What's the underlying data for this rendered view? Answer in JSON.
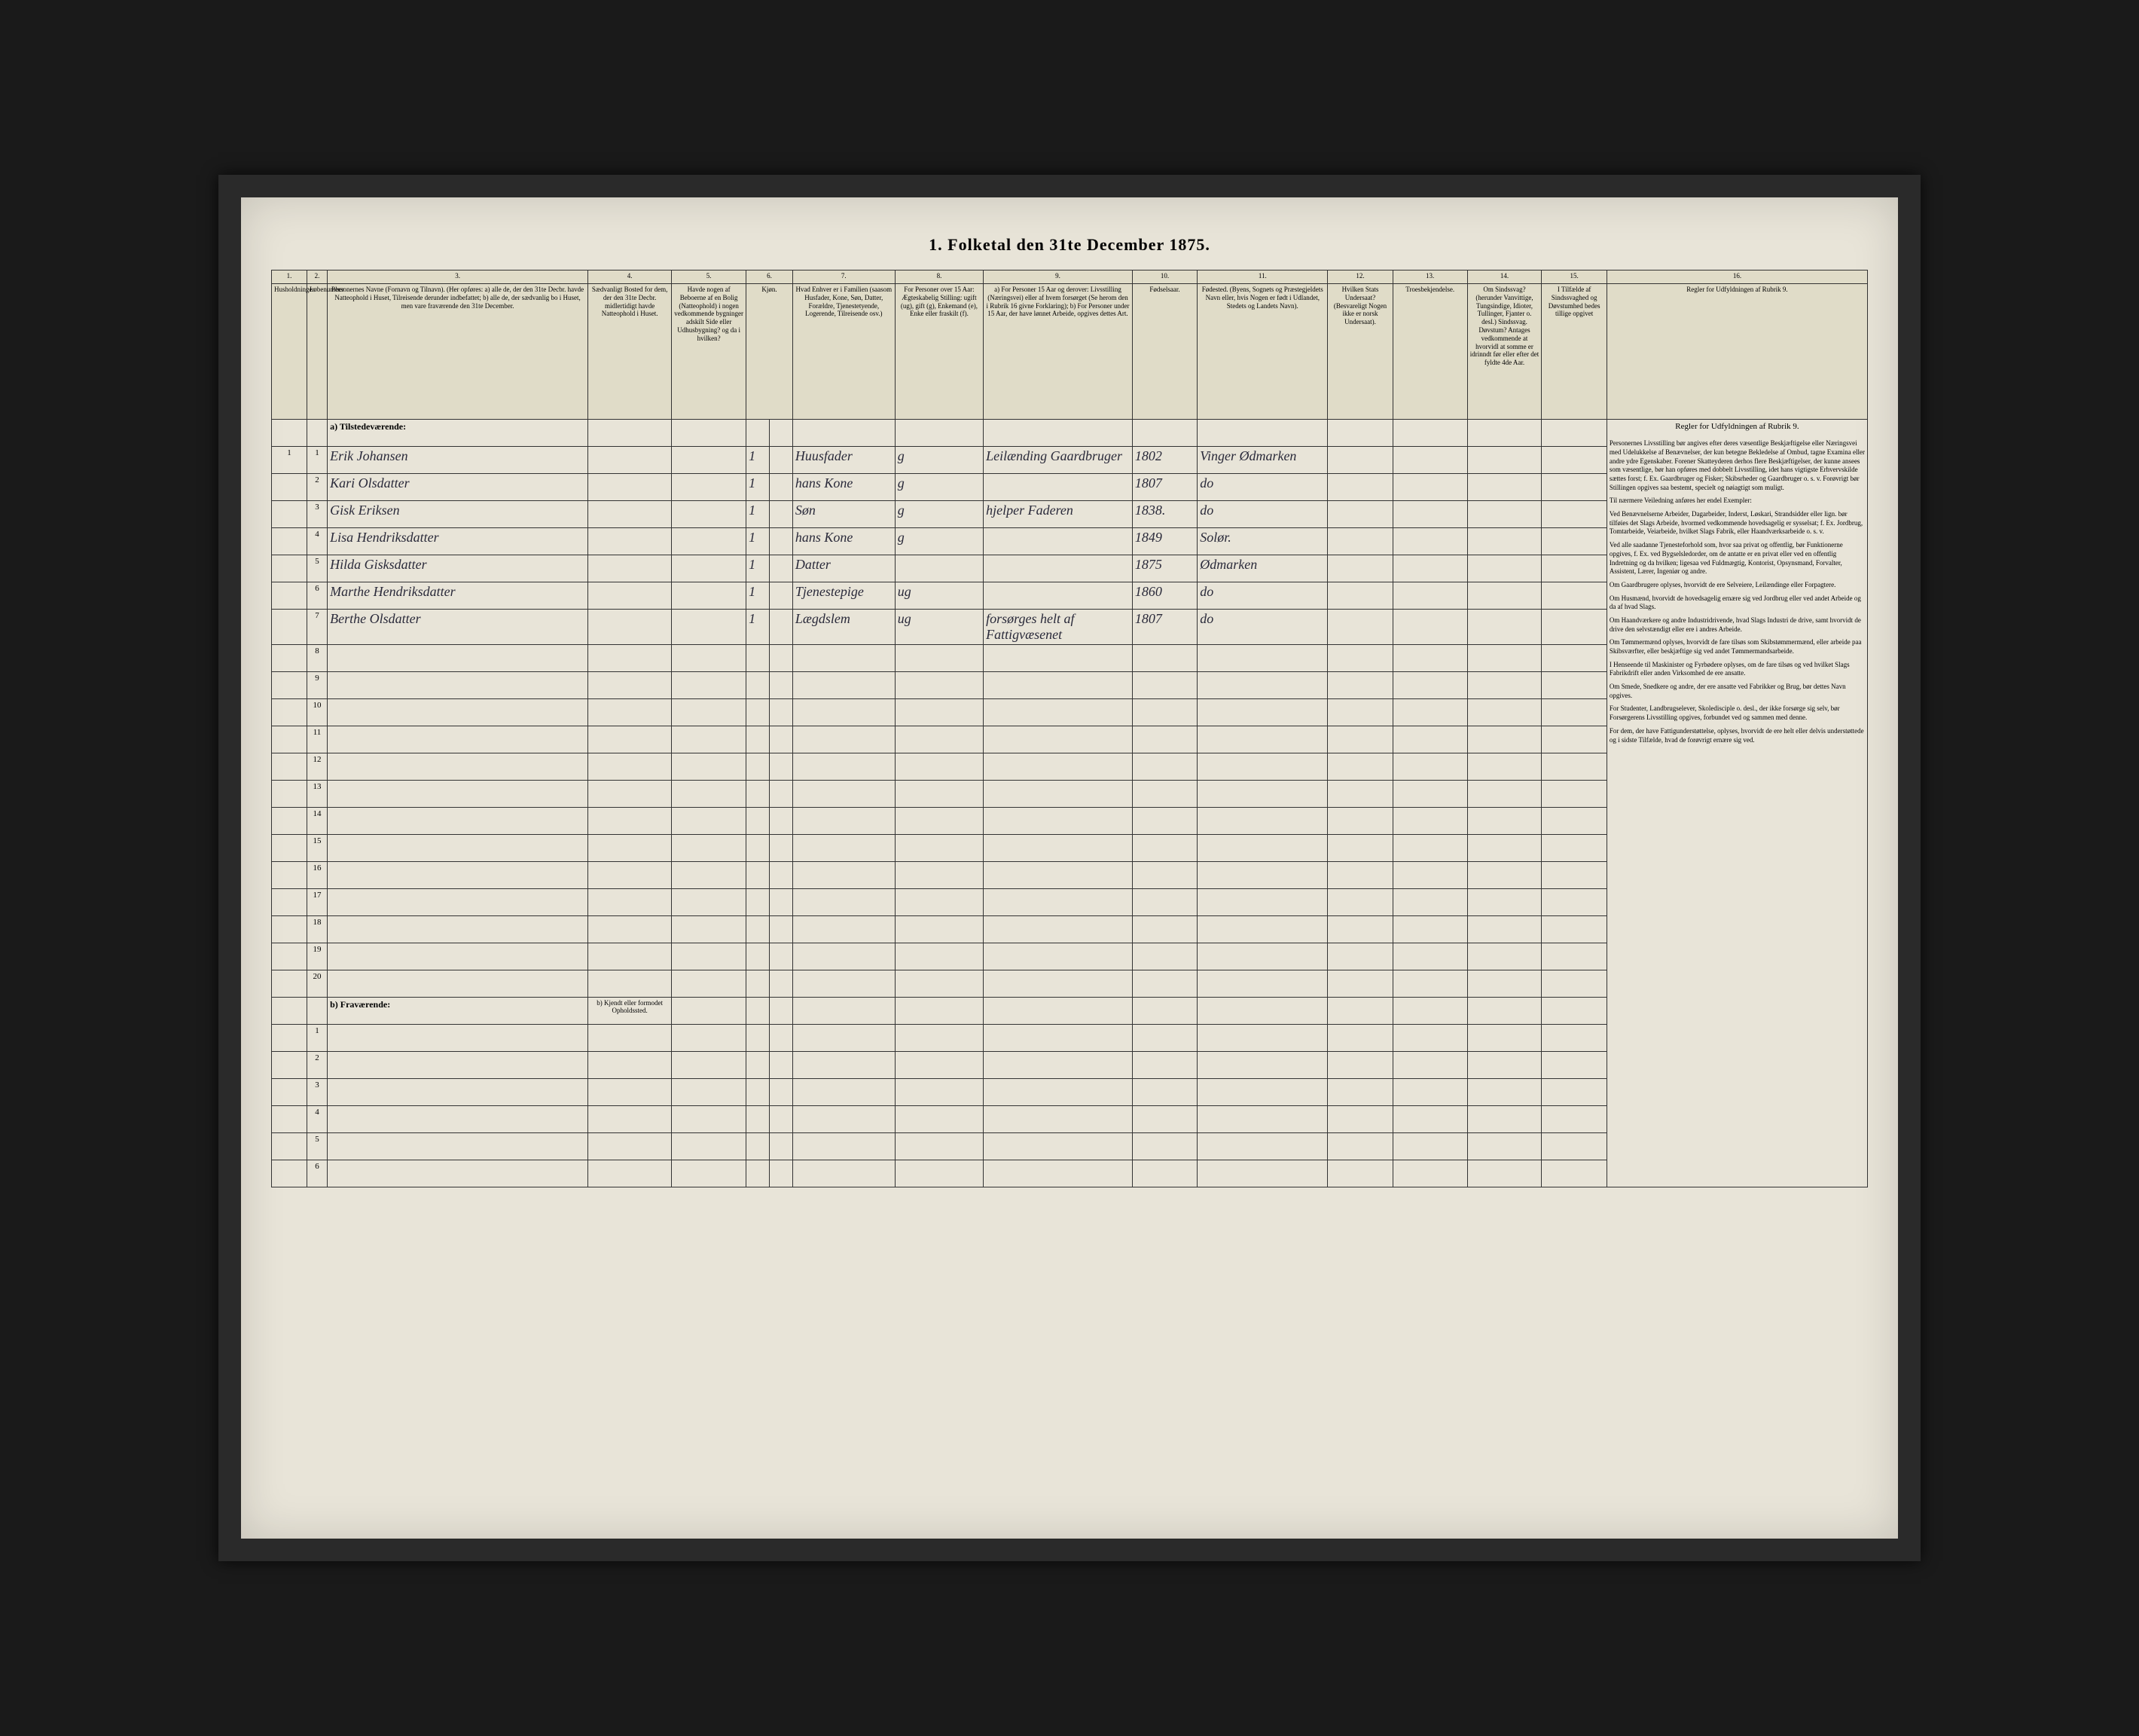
{
  "title": "1. Folketal den 31te December 1875.",
  "columns": {
    "numbers": [
      "1.",
      "2.",
      "3.",
      "4.",
      "5.",
      "6.",
      "7.",
      "8.",
      "9.",
      "10.",
      "11.",
      "12.",
      "13.",
      "14.",
      "15.",
      "16."
    ],
    "headers": [
      "Husholdninger",
      "Løbenumber",
      "Personernes Navne (Fornavn og Tilnavn).\n(Her opføres:\na) alle de, der den 31te Decbr. havde Natteophold i Huset, Tilreisende derunder indbefattet;\nb) alle de, der sædvanlig bo i Huset, men vare fraværende den 31te December.",
      "Sædvanligt Bosted for dem, der den 31te Decbr. midlertidigt havde Natteophold i Huset.",
      "Havde nogen af Beboerne af en Bolig (Natteophold) i nogen vedkommende bygninger adskilt Side eller Udhusbygning? og da i hvilken?",
      "Kjøn.",
      "Hvad Enhver er i Familien (saasom Husfader, Kone, Søn, Datter, Forældre, Tjenestetyende, Logerende, Tilreisende osv.)",
      "For Personer over 15 Aar: Ægteskabelig Stilling: ugift (ug), gift (g), Enkemand (e), Enke eller fraskilt (f).",
      "a) For Personer 15 Aar og derover: Livsstilling (Næringsvei) eller af hvem forsørget (Se herom den i Rubrik 16 givne Forklaring);\nb) For Personer under 15 Aar, der have lønnet Arbeide, opgives dettes Art.",
      "Fødselsaar.",
      "Fødested.\n(Byens, Sognets og Præstegjeldets Navn eller, hvis Nogen er født i Udlandet, Stedets og Landets Navn).",
      "Hvilken Stats Undersaat? (Besvareligt Nogen ikke er norsk Undersaat).",
      "Troesbekjendelse.",
      "Om Sindssvag? (herunder Vanvittige, Tungsindige, Idioter, Tullinger, Fjanter o. desl.) Sindssvag. Døvstum? Antages vedkommende at hvorvidl at somme er idrinndt før eller efter det fyldte 4de Aar.",
      "I Tilfælde af Sindssvaghed og Døvstumhed bedes tillige opgivet",
      "Regler for Udfyldningen af Rubrik 9."
    ]
  },
  "section_a": "a) Tilstedeværende:",
  "section_b": "b) Fraværende:",
  "section_b_col4": "b) Kjendt eller formodet Opholdssted.",
  "rows_a": [
    {
      "h": "1",
      "n": "1",
      "name": "Erik Johansen",
      "col6": "1",
      "rel": "Huusfader",
      "ms": "g",
      "occ": "Leilænding Gaardbruger",
      "year": "1802",
      "place": "Vinger Ødmarken"
    },
    {
      "h": "",
      "n": "2",
      "name": "Kari Olsdatter",
      "col6": "1",
      "rel": "hans Kone",
      "ms": "g",
      "occ": "",
      "year": "1807",
      "place": "do"
    },
    {
      "h": "",
      "n": "3",
      "name": "Gisk Eriksen",
      "col6": "1",
      "rel": "Søn",
      "ms": "g",
      "occ": "hjelper Faderen",
      "year": "1838.",
      "place": "do"
    },
    {
      "h": "",
      "n": "4",
      "name": "Lisa Hendriksdatter",
      "col6": "1",
      "rel": "hans Kone",
      "ms": "g",
      "occ": "",
      "year": "1849",
      "place": "Solør."
    },
    {
      "h": "",
      "n": "5",
      "name": "Hilda Gisksdatter",
      "col6": "1",
      "rel": "Datter",
      "ms": "",
      "occ": "",
      "year": "1875",
      "place": "Ødmarken"
    },
    {
      "h": "",
      "n": "6",
      "name": "Marthe Hendriksdatter",
      "col6": "1",
      "rel": "Tjenestepige",
      "ms": "ug",
      "occ": "",
      "year": "1860",
      "place": "do"
    },
    {
      "h": "",
      "n": "7",
      "name": "Berthe Olsdatter",
      "col6": "1",
      "rel": "Lægdslem",
      "ms": "ug",
      "occ": "forsørges helt af Fattigvæsenet",
      "year": "1807",
      "place": "do"
    }
  ],
  "empty_rows_a": [
    "8",
    "9",
    "10",
    "11",
    "12",
    "13",
    "14",
    "15",
    "16",
    "17",
    "18",
    "19",
    "20"
  ],
  "empty_rows_b": [
    "1",
    "2",
    "3",
    "4",
    "5",
    "6"
  ],
  "rules": {
    "heading": "Regler for Udfyldningen af Rubrik 9.",
    "paragraphs": [
      "Personernes Livsstilling bør angives efter deres væsentlige Beskjæftigelse eller Næringsvei med Udelukkelse af Benævnelser, der kun betegne Bekledelse af Ombud, tagne Examina eller andre ydre Egenskaber. Forener Skatteyderen derhos flere Beskjæftigelser, der kunne ansees som væsentlige, bør han opføres med dobbelt Livsstilling, idet hans vigtigste Erhvervskilde sættes forst; f. Ex. Gaardbruger og Fisker; Skibsrheder og Gaardbruger o. s. v. Forøvrigt bør Stillingen opgives saa bestemt, specielt og nøiagtigt som muligt.",
      "Til nærmere Veiledning anføres her endel Exempler:",
      "Ved Benævnelserne Arbeider, Dagarbeider, Inderst, Løskari, Strandsidder eller lign. bør tilføies det Slags Arbeide, hvormed vedkommende hovedsagelig er sysselsat; f. Ex. Jordbrug, Tomtarbeide, Veiarbeide, hvilket Slags Fabrik, eller Haandværksarbeide o. s. v.",
      "Ved alle saadanne Tjenesteforhold som, hvor saa privat og offentlig, bør Funktionerne opgives, f. Ex. ved Bygselsledorder, om de antatte er en privat eller ved en offentlig Indretning og da hvilken; ligesaa ved Fuldmægtig, Kontorist, Opsynsmand, Forvalter, Assistent, Lærer, Ingeniør og andre.",
      "Om Gaardbrugere oplyses, hvorvidt de ere Selveiere, Leilændinge eller Forpagtere.",
      "Om Husmænd, hvorvidt de hovedsagelig ernære sig ved Jordbrug eller ved andet Arbeide og da af hvad Slags.",
      "Om Haandværkere og andre Industridrivende, hvad Slags Industri de drive, samt hvorvidt de drive den selvstændigt eller ere i andres Arbeide.",
      "Om Tømmermænd oplyses, hvorvidt de fare tilsøs som Skibstømmermænd, eller arbeide paa Skibsværfter, eller beskjæftige sig ved andet Tømmermandsarbeide.",
      "I Henseende til Maskinister og Fyrbødere oplyses, om de fare tilsøs og ved hvilket Slags Fabrikdrift eller anden Virksomhed de ere ansatte.",
      "Om Smede, Snedkere og andre, der ere ansatte ved Fabrikker og Brug, bør dettes Navn opgives.",
      "For Studenter, Landbrugselever, Skoledisciple o. desl., der ikke forsørge sig selv, bør Forsørgerens Livsstilling opgives, forbundet ved og sammen med denne.",
      "For dem, der have Fattigunderstøttelse, oplyses, hvorvidt de ere helt eller delvis understøttede og i sidste Tilfælde, hvad de forøvrigt ernære sig ved."
    ]
  },
  "widths": {
    "c1": 38,
    "c2": 22,
    "c3": 280,
    "c4": 90,
    "c5": 80,
    "c6a": 25,
    "c6b": 25,
    "c7": 110,
    "c8": 95,
    "c9": 160,
    "c10": 70,
    "c11": 140,
    "c12": 70,
    "c13": 80,
    "c14": 80,
    "c15": 70,
    "c16": 280
  }
}
